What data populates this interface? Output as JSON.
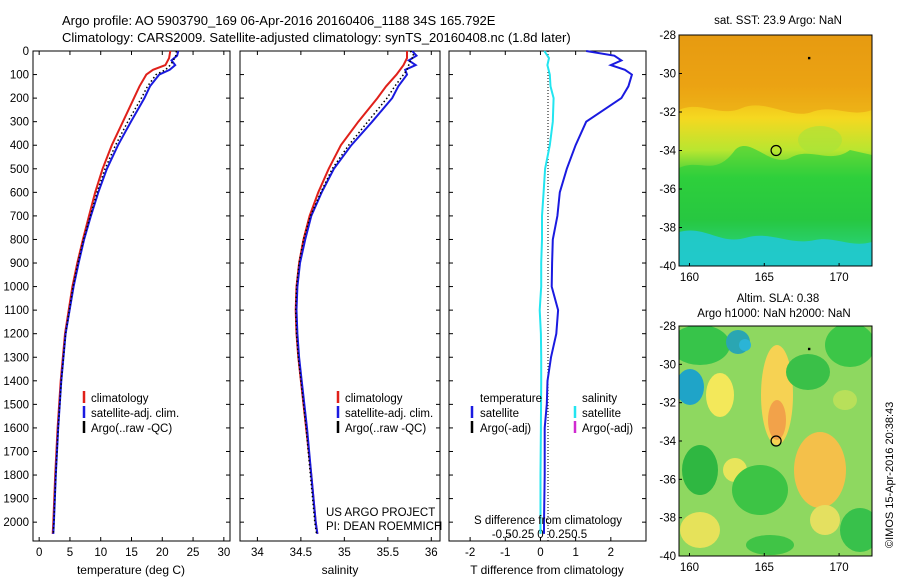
{
  "header": {
    "line1": "Argo profile: AO 5903790_169 06-Apr-2016 20160406_1188 34S 165.792E",
    "line2": "Climatology: CARS2009. Satellite-adjusted climatology: synTS_20160408.nc (1.8d later)"
  },
  "colors": {
    "climatology": "#e0201a",
    "satellite": "#1a1ae0",
    "argo": "#000000",
    "salinity_satellite": "#22e5f0",
    "argo_adj_salinity": "#d02ad0"
  },
  "chart_data": [
    {
      "type": "line",
      "panel": "temperature",
      "xlabel": "temperature (deg C)",
      "ylabel": "",
      "xlim": [
        -1,
        31
      ],
      "ylim": [
        2080,
        0
      ],
      "y_reversed": true,
      "xticks": [
        0,
        5,
        10,
        15,
        20,
        25,
        30
      ],
      "yticks": [
        0,
        100,
        200,
        300,
        400,
        500,
        600,
        700,
        800,
        900,
        1000,
        1100,
        1200,
        1300,
        1400,
        1500,
        1600,
        1700,
        1800,
        1900,
        2000
      ],
      "legend": [
        "climatology",
        "satellite-adj. clim.",
        "Argo(..raw -QC)"
      ],
      "legend_position": "lower-right",
      "series": [
        {
          "name": "climatology",
          "color": "#e0201a",
          "style": "solid",
          "depth": [
            0,
            30,
            60,
            80,
            100,
            150,
            200,
            300,
            400,
            500,
            600,
            700,
            800,
            900,
            1000,
            1200,
            1400,
            1600,
            1800,
            2000,
            2050
          ],
          "values": [
            21.3,
            21.1,
            20.5,
            18.5,
            17.4,
            16.3,
            15.4,
            13.6,
            11.8,
            10.3,
            9.1,
            8.1,
            7.1,
            6.2,
            5.4,
            4.2,
            3.5,
            3.0,
            2.6,
            2.3,
            2.2
          ]
        },
        {
          "name": "satellite-adj. clim.",
          "color": "#1a1ae0",
          "style": "solid",
          "depth": [
            0,
            20,
            40,
            60,
            80,
            100,
            150,
            200,
            300,
            400,
            500,
            600,
            700,
            800,
            900,
            1000,
            1200,
            1400,
            1600,
            1800,
            2000,
            2050
          ],
          "values": [
            22.6,
            22.4,
            21.5,
            22.1,
            21.2,
            19.5,
            18.0,
            17.1,
            14.9,
            12.8,
            11.0,
            9.6,
            8.4,
            7.3,
            6.4,
            5.6,
            4.3,
            3.6,
            3.1,
            2.7,
            2.4,
            2.3
          ]
        },
        {
          "name": "Argo(..raw -QC)",
          "color": "#000000",
          "style": "dotted",
          "depth": [
            0,
            20,
            40,
            60,
            80,
            100,
            150,
            200,
            300,
            400,
            500,
            600,
            700,
            800,
            900,
            1000,
            1200,
            1400,
            1600,
            1800,
            2000,
            2050
          ],
          "values": [
            22.3,
            22.2,
            21.8,
            21.3,
            20.5,
            19.0,
            17.6,
            16.6,
            14.4,
            12.4,
            10.7,
            9.4,
            8.3,
            7.2,
            6.3,
            5.5,
            4.3,
            3.6,
            3.1,
            2.7,
            2.4,
            2.3
          ]
        }
      ]
    },
    {
      "type": "line",
      "panel": "salinity",
      "xlabel": "salinity",
      "ylabel": "",
      "xlim": [
        33.8,
        36.1
      ],
      "ylim": [
        2080,
        0
      ],
      "y_reversed": true,
      "xticks": [
        34,
        34.5,
        35,
        35.5,
        36
      ],
      "xtick_labels": [
        "34",
        "34.5",
        "35",
        "35.5",
        "36"
      ],
      "legend": [
        "climatology",
        "satellite-adj. clim.",
        "Argo(..raw -QC)"
      ],
      "legend_position": "lower-right",
      "annotation_lines": [
        "US ARGO PROJECT",
        "PI: DEAN ROEMMICH"
      ],
      "series": [
        {
          "name": "climatology",
          "color": "#e0201a",
          "style": "solid",
          "depth": [
            0,
            30,
            60,
            100,
            150,
            200,
            300,
            400,
            500,
            600,
            700,
            800,
            900,
            1000,
            1100,
            1200,
            1300,
            1400,
            1600,
            1800,
            2000,
            2050
          ],
          "values": [
            35.72,
            35.72,
            35.68,
            35.6,
            35.48,
            35.38,
            35.16,
            34.96,
            34.82,
            34.7,
            34.6,
            34.53,
            34.48,
            34.45,
            34.44,
            34.45,
            34.47,
            34.5,
            34.56,
            34.62,
            34.67,
            34.69
          ]
        },
        {
          "name": "satellite-adj. clim.",
          "color": "#1a1ae0",
          "style": "solid",
          "depth": [
            0,
            20,
            40,
            60,
            80,
            100,
            150,
            200,
            300,
            400,
            500,
            600,
            700,
            800,
            900,
            1000,
            1100,
            1200,
            1300,
            1400,
            1600,
            1800,
            2000,
            2050
          ],
          "values": [
            35.78,
            35.83,
            35.74,
            35.82,
            35.7,
            35.72,
            35.62,
            35.55,
            35.32,
            35.08,
            34.88,
            34.74,
            34.62,
            34.55,
            34.49,
            34.46,
            34.45,
            34.46,
            34.48,
            34.51,
            34.57,
            34.62,
            34.67,
            34.69
          ]
        },
        {
          "name": "Argo(..raw -QC)",
          "color": "#000000",
          "style": "dotted",
          "depth": [
            0,
            20,
            40,
            60,
            80,
            100,
            150,
            200,
            300,
            400,
            500,
            600,
            700,
            800,
            900,
            1000,
            1100,
            1200,
            1300,
            1400,
            1600,
            1800,
            2000,
            2050
          ],
          "values": [
            35.76,
            35.8,
            35.76,
            35.74,
            35.72,
            35.68,
            35.58,
            35.49,
            35.27,
            35.05,
            34.86,
            34.73,
            34.61,
            34.53,
            34.48,
            34.45,
            34.44,
            34.45,
            34.47,
            34.5,
            34.56,
            34.61,
            34.66,
            34.68
          ]
        }
      ]
    },
    {
      "type": "line",
      "panel": "difference",
      "xlabel": "T difference from climatology",
      "xlabel_top": "S difference from climatology",
      "xlim": [
        -2.6,
        3.0
      ],
      "ylim": [
        2080,
        0
      ],
      "y_reversed": true,
      "xticks": [
        -2,
        -1,
        0,
        1,
        2
      ],
      "xticks_top": [
        -0.5,
        -0.25,
        0,
        0.25,
        0.5
      ],
      "xtick_top_labels": [
        "-0.5",
        "-0.25",
        "0",
        "0.25",
        "0.5"
      ],
      "legend_temperature": {
        "title": "temperature",
        "items": [
          "satellite",
          "Argo(-adj)"
        ]
      },
      "legend_salinity": {
        "title": "salinity",
        "items": [
          "satellite",
          "Argo(-adj)"
        ]
      },
      "legend_position": "lower-left",
      "series": [
        {
          "name": "satellite",
          "quantity": "T",
          "color": "#1a1ae0",
          "depth": [
            0,
            20,
            40,
            60,
            80,
            100,
            150,
            200,
            300,
            400,
            500,
            600,
            700,
            800,
            900,
            1000,
            1100,
            1200,
            1300,
            1400,
            1500,
            1600,
            1800,
            2000,
            2050
          ],
          "values": [
            1.3,
            2.1,
            2.3,
            2.0,
            2.4,
            2.6,
            2.5,
            2.3,
            1.3,
            1.0,
            0.75,
            0.55,
            0.48,
            0.35,
            0.33,
            0.32,
            0.5,
            0.45,
            0.3,
            0.2,
            0.18,
            0.12,
            0.12,
            0.1,
            0.1
          ]
        },
        {
          "name": "satellite",
          "quantity": "S",
          "color": "#22e5f0",
          "depth": [
            0,
            30,
            60,
            100,
            150,
            200,
            300,
            400,
            500,
            600,
            700,
            800,
            900,
            1000,
            1100,
            1200,
            1300,
            1400,
            1600,
            1800,
            2000,
            2050
          ],
          "values": [
            0.05,
            0.11,
            0.09,
            0.12,
            0.13,
            0.17,
            0.16,
            0.12,
            0.06,
            0.04,
            0.02,
            0.02,
            0.01,
            0.01,
            -0.01,
            0.005,
            0.01,
            0.01,
            0.005,
            0.0,
            0.0,
            0.0
          ]
        }
      ]
    }
  ],
  "maps": [
    {
      "title": "sat. SST: 23.9 Argo: NaN",
      "lat_ticks": [
        -28,
        -30,
        -32,
        -34,
        -36,
        -38,
        -40
      ],
      "lon_ticks": [
        160,
        165,
        170
      ],
      "lat_range": [
        -40,
        -28
      ],
      "lon_range": [
        159.3,
        172.2
      ],
      "argo_marker": {
        "lon": 165.79,
        "lat": -34.0
      },
      "dot": {
        "lon": 168.0,
        "lat": -29.2
      }
    },
    {
      "title_line1": "Altim. SLA: 0.38",
      "title_line2": "Argo h1000: NaN h2000: NaN",
      "lat_ticks": [
        -28,
        -30,
        -32,
        -34,
        -36,
        -38,
        -40
      ],
      "lon_ticks": [
        160,
        165,
        170
      ],
      "lat_range": [
        -40,
        -28
      ],
      "lon_range": [
        159.3,
        172.2
      ],
      "argo_marker": {
        "lon": 165.79,
        "lat": -34.0
      },
      "dot": {
        "lon": 168.0,
        "lat": -29.2
      }
    }
  ],
  "footer": {
    "credit": "©IMOS 15-Apr-2016 20:38:43"
  }
}
